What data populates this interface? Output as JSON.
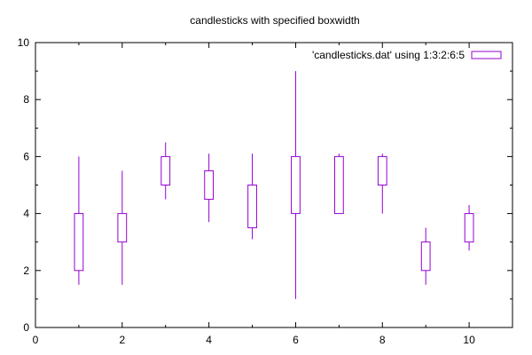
{
  "chart_data": {
    "type": "candlestick",
    "title": "candlesticks with specified boxwidth",
    "xlabel": "",
    "ylabel": "",
    "xlim": [
      0,
      11
    ],
    "ylim": [
      0,
      10
    ],
    "x_ticks": [
      0,
      2,
      4,
      6,
      8,
      10
    ],
    "y_ticks": [
      0,
      2,
      4,
      6,
      8,
      10
    ],
    "grid": false,
    "legend_position": "top-right",
    "series": [
      {
        "name": "'candlesticks.dat' using 1:3:2:6:5",
        "color": "#9400d3",
        "boxwidth": 0.2,
        "points": [
          {
            "x": 1,
            "box_min": 2.0,
            "whisker_min": 1.5,
            "whisker_high": 6.0,
            "box_high": 4.0
          },
          {
            "x": 2,
            "box_min": 3.0,
            "whisker_min": 1.5,
            "whisker_high": 5.5,
            "box_high": 4.0
          },
          {
            "x": 3,
            "box_min": 5.0,
            "whisker_min": 4.5,
            "whisker_high": 6.5,
            "box_high": 6.0
          },
          {
            "x": 4,
            "box_min": 4.5,
            "whisker_min": 3.7,
            "whisker_high": 6.1,
            "box_high": 5.5
          },
          {
            "x": 5,
            "box_min": 3.5,
            "whisker_min": 3.1,
            "whisker_high": 6.1,
            "box_high": 5.0
          },
          {
            "x": 6,
            "box_min": 4.0,
            "whisker_min": 1.0,
            "whisker_high": 9.0,
            "box_high": 6.0
          },
          {
            "x": 7,
            "box_min": 4.0,
            "whisker_min": 4.0,
            "whisker_high": 6.1,
            "box_high": 6.0
          },
          {
            "x": 8,
            "box_min": 5.0,
            "whisker_min": 4.0,
            "whisker_high": 6.1,
            "box_high": 6.0
          },
          {
            "x": 9,
            "box_min": 2.0,
            "whisker_min": 1.5,
            "whisker_high": 3.5,
            "box_high": 3.0
          },
          {
            "x": 10,
            "box_min": 3.0,
            "whisker_min": 2.7,
            "whisker_high": 4.3,
            "box_high": 4.0
          }
        ]
      }
    ]
  }
}
